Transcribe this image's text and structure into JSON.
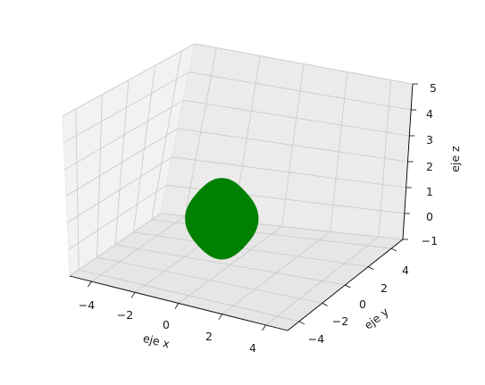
{
  "chart_data": {
    "type": "3d-surface",
    "title": "",
    "xlabel": "eje x",
    "ylabel": "eje y",
    "zlabel": "eje z",
    "xlim": [
      -5,
      5
    ],
    "ylim": [
      -5,
      5
    ],
    "zlim": [
      -1,
      5
    ],
    "xticks": [
      "−4",
      "−2",
      "0",
      "2",
      "4"
    ],
    "yticks": [
      "−4",
      "−2",
      "0",
      "2",
      "4"
    ],
    "zticks": [
      "−1",
      "0",
      "1",
      "2",
      "3",
      "4",
      "5"
    ],
    "grid": true,
    "surface": {
      "shape": "sphere",
      "center": [
        0,
        0,
        1
      ],
      "radius": 1.5,
      "color": "#008000"
    }
  }
}
